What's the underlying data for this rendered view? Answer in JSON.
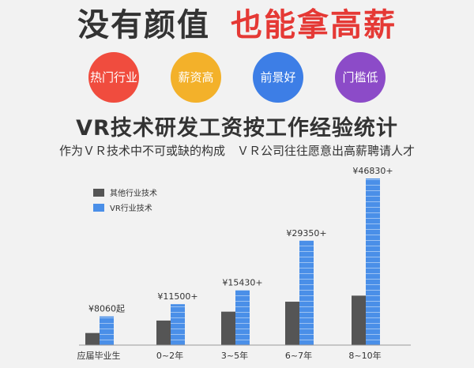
{
  "header": {
    "headline_left": "没有颜值",
    "headline_right": "也能拿高薪"
  },
  "badges": [
    {
      "label": "热门行业",
      "color": "#f04c3e"
    },
    {
      "label": "薪资高",
      "color": "#f3b12a"
    },
    {
      "label": "前景好",
      "color": "#3d7ee6"
    },
    {
      "label": "门槛低",
      "color": "#8c4bc8"
    }
  ],
  "section": {
    "title": "VR技术研发工资按工作经验统计",
    "subtitle": "作为ＶＲ技术中不可或缺的构成　ＶＲ公司往往愿意出高薪聘请人才"
  },
  "chart_data": {
    "type": "bar",
    "categories": [
      "应届毕业生",
      "0~2年",
      "3~5年",
      "6~7年",
      "8~10年"
    ],
    "series": [
      {
        "name": "其他行业技术",
        "values": [
          3400,
          6900,
          9400,
          12200,
          13900
        ],
        "color": "#555555"
      },
      {
        "name": "VR行业技术",
        "values": [
          8060,
          11500,
          15430,
          29350,
          46830
        ],
        "color": "#4a8fe8"
      }
    ],
    "data_labels": [
      "¥8060起",
      "¥11500+",
      "¥15430+",
      "¥29350+",
      "¥46830+"
    ],
    "legend_position": "top-left",
    "grid": false
  }
}
